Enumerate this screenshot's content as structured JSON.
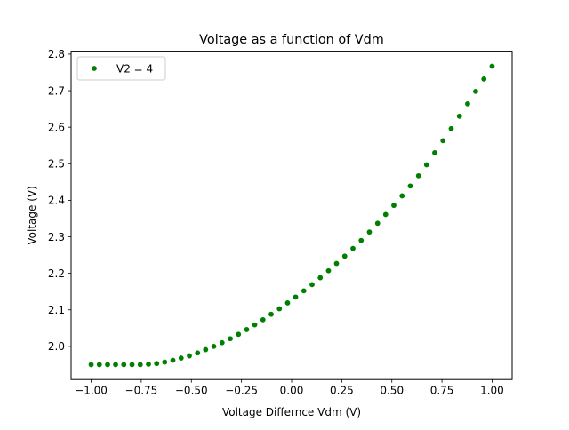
{
  "chart_data": {
    "type": "scatter",
    "title": "Voltage as a function of Vdm",
    "xlabel": "Voltage Differnce Vdm (V)",
    "ylabel": "Voltage (V)",
    "xlim": [
      -1.1,
      1.1
    ],
    "ylim": [
      1.9092,
      2.8081
    ],
    "xticks": [
      -1.0,
      -0.75,
      -0.5,
      -0.25,
      0.0,
      0.25,
      0.5,
      0.75,
      1.0
    ],
    "xtick_labels": [
      "−1.00",
      "−0.75",
      "−0.50",
      "−0.25",
      "0.00",
      "0.25",
      "0.50",
      "0.75",
      "1.00"
    ],
    "yticks": [
      2.0,
      2.1,
      2.2,
      2.3,
      2.4,
      2.5,
      2.6,
      2.7,
      2.8
    ],
    "ytick_labels": [
      "2.0",
      "2.1",
      "2.2",
      "2.3",
      "2.4",
      "2.5",
      "2.6",
      "2.7",
      "2.8"
    ],
    "grid": false,
    "legend_position": "top-left",
    "series": [
      {
        "name": "V2 = 4",
        "color": "#008000",
        "marker": "circle",
        "x": [
          -1.0,
          -0.959,
          -0.918,
          -0.878,
          -0.837,
          -0.796,
          -0.755,
          -0.714,
          -0.673,
          -0.633,
          -0.592,
          -0.551,
          -0.51,
          -0.469,
          -0.429,
          -0.388,
          -0.347,
          -0.306,
          -0.265,
          -0.224,
          -0.184,
          -0.143,
          -0.102,
          -0.061,
          -0.02,
          0.02,
          0.061,
          0.102,
          0.143,
          0.184,
          0.224,
          0.265,
          0.306,
          0.347,
          0.388,
          0.429,
          0.469,
          0.51,
          0.551,
          0.592,
          0.633,
          0.673,
          0.714,
          0.755,
          0.796,
          0.837,
          0.878,
          0.918,
          0.959,
          1.0
        ],
        "y": [
          1.95,
          1.95,
          1.95,
          1.95,
          1.95,
          1.95,
          1.95,
          1.951,
          1.953,
          1.957,
          1.962,
          1.968,
          1.974,
          1.982,
          1.991,
          2.0,
          2.01,
          2.021,
          2.033,
          2.046,
          2.059,
          2.073,
          2.088,
          2.103,
          2.119,
          2.135,
          2.152,
          2.169,
          2.188,
          2.207,
          2.227,
          2.247,
          2.268,
          2.29,
          2.313,
          2.337,
          2.361,
          2.386,
          2.412,
          2.439,
          2.467,
          2.497,
          2.53,
          2.563,
          2.596,
          2.63,
          2.664,
          2.698,
          2.732,
          2.767
        ]
      }
    ]
  }
}
